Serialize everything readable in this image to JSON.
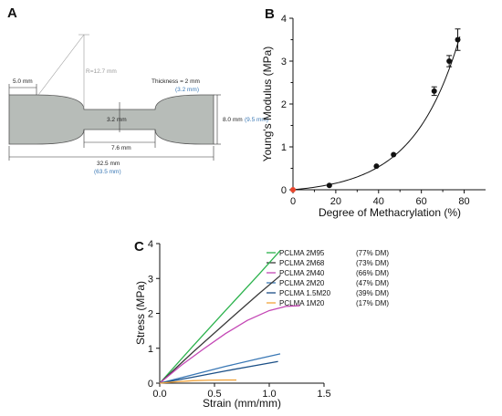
{
  "panelA": {
    "letter": "A",
    "labels": {
      "width_end": "5.0 mm",
      "radius": "R=12.7 mm",
      "thickness": "Thickness = 2 mm",
      "thickness_alt": "(3.2 mm)",
      "neck_width": "3.2 mm",
      "end_height": "8.0 mm",
      "end_height_alt": "(9.5 mm)",
      "gauge_length": "7.6 mm",
      "total_length": "32.5 mm",
      "total_length_alt": "(63.5 mm)"
    },
    "colors": {
      "specimen_fill": "#b7bcb8",
      "alt_text": "#3a78b5"
    }
  },
  "panelB": {
    "letter": "B",
    "chart_data": {
      "type": "scatter",
      "xlabel": "Degree of Methacrylation (%)",
      "ylabel": "Young's Modulus (MPa)",
      "xlim": [
        0,
        90
      ],
      "ylim": [
        0,
        4
      ],
      "x_ticks": [
        "0",
        "20",
        "40",
        "60",
        "80"
      ],
      "y_ticks": [
        "0",
        "1",
        "2",
        "3",
        "4"
      ],
      "points": [
        {
          "x": 0,
          "y": 0,
          "err": 0,
          "color": "#e8452c"
        },
        {
          "x": 17,
          "y": 0.1,
          "err": 0.02,
          "color": "#111111"
        },
        {
          "x": 39,
          "y": 0.55,
          "err": 0.03,
          "color": "#111111"
        },
        {
          "x": 47,
          "y": 0.82,
          "err": 0.03,
          "color": "#111111"
        },
        {
          "x": 66,
          "y": 2.3,
          "err": 0.1,
          "color": "#111111"
        },
        {
          "x": 73,
          "y": 3.0,
          "err": 0.13,
          "color": "#111111"
        },
        {
          "x": 77,
          "y": 3.5,
          "err": 0.25,
          "color": "#111111"
        }
      ],
      "fit_curve": {
        "model": "exponential",
        "a": 0.1,
        "b": 0.0462,
        "x_range": [
          0,
          78
        ]
      }
    }
  },
  "panelC": {
    "letter": "C",
    "chart_data": {
      "type": "line",
      "xlabel": "Strain (mm/mm)",
      "ylabel": "Stress (MPa)",
      "xlim": [
        0,
        1.5
      ],
      "ylim": [
        0,
        4
      ],
      "x_ticks": [
        "0.0",
        "0.5",
        "1.0",
        "1.5"
      ],
      "y_ticks": [
        "0",
        "1",
        "2",
        "3",
        "4"
      ],
      "series": [
        {
          "name": "PCLMA 2M95",
          "dm": "(77% DM)",
          "color": "#2bb24c",
          "points": [
            [
              0,
              0
            ],
            [
              0.3,
              1.05
            ],
            [
              0.6,
              2.08
            ],
            [
              0.9,
              3.1
            ],
            [
              1.1,
              3.8
            ]
          ]
        },
        {
          "name": "PCLMA 2M68",
          "dm": "(73% DM)",
          "color": "#3a3a3a",
          "points": [
            [
              0,
              0
            ],
            [
              0.3,
              0.88
            ],
            [
              0.6,
              1.72
            ],
            [
              0.9,
              2.55
            ],
            [
              1.1,
              3.08
            ]
          ]
        },
        {
          "name": "PCLMA 2M40",
          "dm": "(66% DM)",
          "color": "#c447b5",
          "points": [
            [
              0,
              0
            ],
            [
              0.2,
              0.52
            ],
            [
              0.4,
              0.98
            ],
            [
              0.6,
              1.42
            ],
            [
              0.8,
              1.8
            ],
            [
              1.0,
              2.08
            ],
            [
              1.15,
              2.2
            ],
            [
              1.28,
              2.22
            ]
          ]
        },
        {
          "name": "PCLMA 2M20",
          "dm": "(47% DM)",
          "color": "#3a78b5",
          "points": [
            [
              0,
              0
            ],
            [
              0.3,
              0.24
            ],
            [
              0.6,
              0.48
            ],
            [
              0.9,
              0.7
            ],
            [
              1.1,
              0.84
            ]
          ]
        },
        {
          "name": "PCLMA 1.5M20",
          "dm": "(39% DM)",
          "color": "#1b4f86",
          "points": [
            [
              0,
              0
            ],
            [
              0.3,
              0.17
            ],
            [
              0.6,
              0.35
            ],
            [
              0.9,
              0.52
            ],
            [
              1.08,
              0.62
            ]
          ]
        },
        {
          "name": "PCLMA 1M20",
          "dm": "(17% DM)",
          "color": "#f0a33c",
          "points": [
            [
              0,
              0
            ],
            [
              0.15,
              0.04
            ],
            [
              0.3,
              0.07
            ],
            [
              0.45,
              0.085
            ],
            [
              0.6,
              0.09
            ],
            [
              0.7,
              0.09
            ]
          ]
        }
      ]
    }
  }
}
